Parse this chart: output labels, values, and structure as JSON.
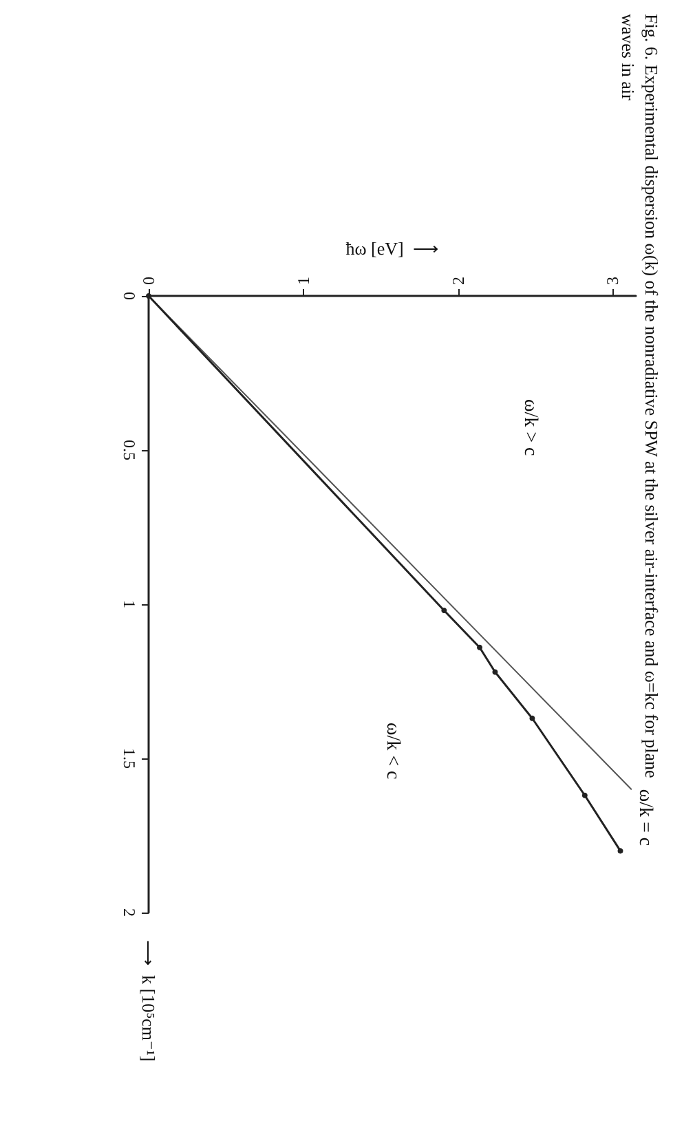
{
  "chart_data": {
    "type": "line",
    "title": "Fig. 6. Experimental dispersion ω(k) of the nonradiative SPW at the silver air-interface and ω=kc for plane waves in air",
    "xlabel": "ħω [eV]  ⟶",
    "ylabel": "⟶  k [10⁵cm⁻¹]",
    "xlim": [
      0,
      3.15
    ],
    "xticks": [
      0,
      1,
      2,
      3
    ],
    "ylim": [
      2,
      0
    ],
    "yticks": [
      0,
      0.5,
      1,
      1.5,
      2
    ],
    "grid": false,
    "legend": false,
    "series": [
      {
        "name": "ω/k = c",
        "color": "#555555",
        "x": [
          0,
          3.12
        ],
        "values": [
          0,
          1.6
        ],
        "marker": "none"
      },
      {
        "color": "#222222",
        "x": [
          0,
          1.91,
          2.14,
          2.24,
          2.48,
          2.82,
          3.05
        ],
        "values": [
          0,
          1.02,
          1.14,
          1.22,
          1.37,
          1.62,
          1.8
        ],
        "marker": "circle"
      }
    ],
    "annotations": [
      "ω/k > c",
      "ω/k < c"
    ]
  }
}
